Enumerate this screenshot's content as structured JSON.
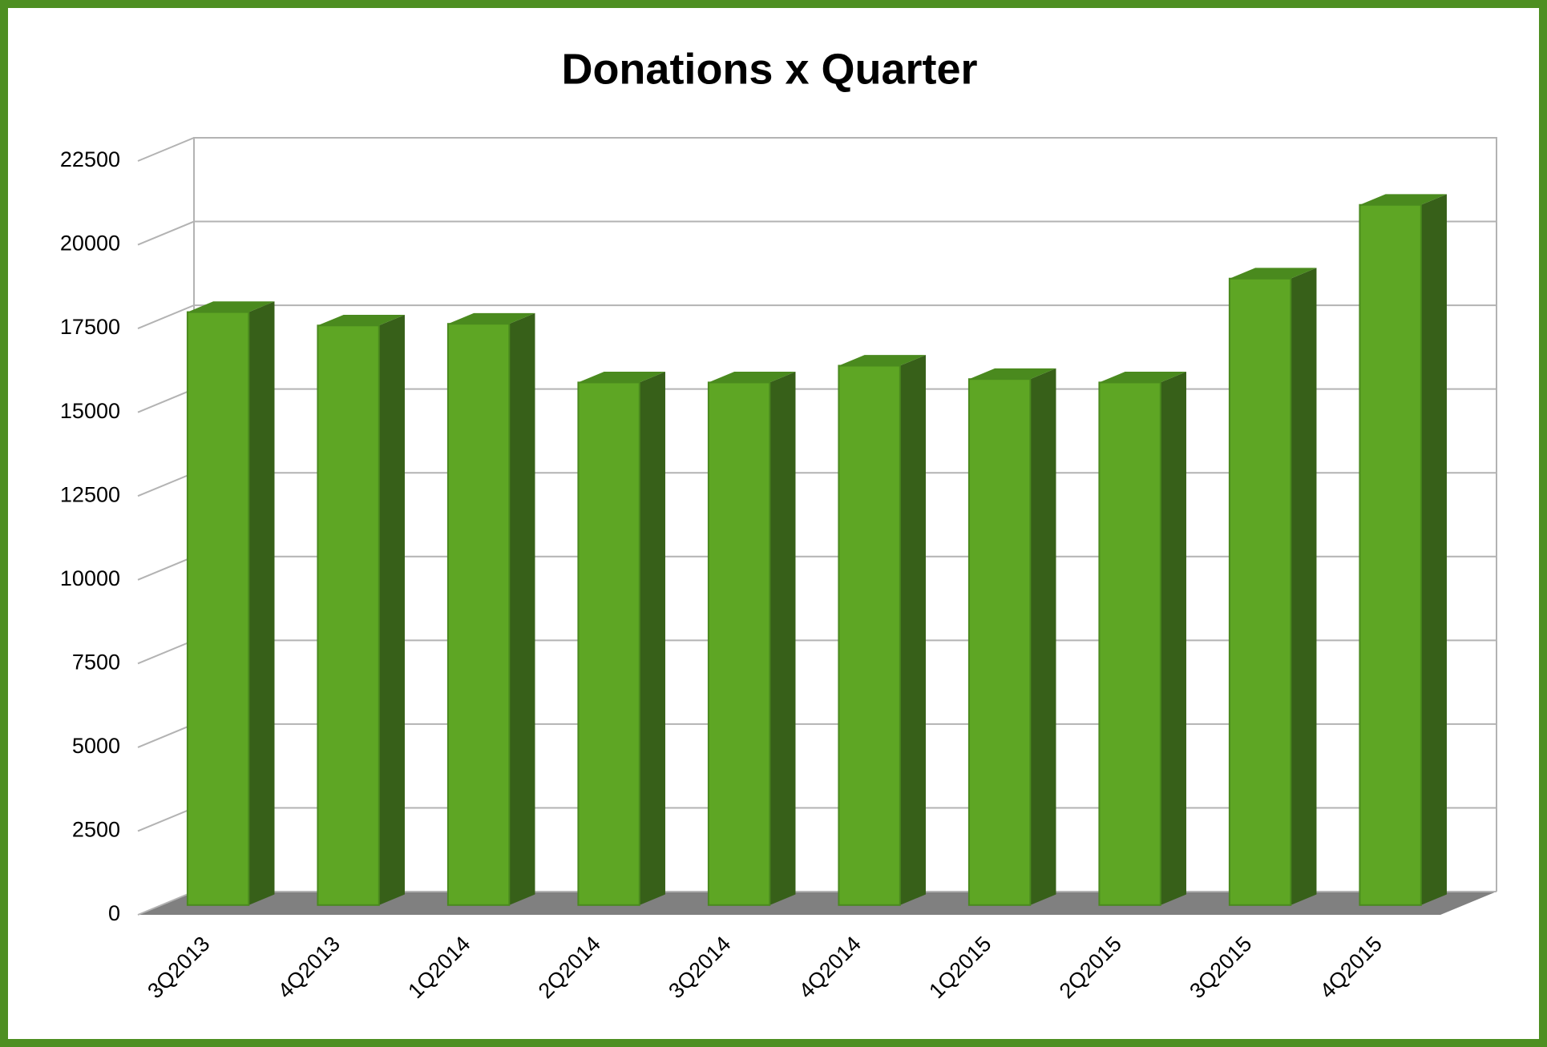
{
  "chart_data": {
    "type": "bar",
    "title": "Donations x Quarter",
    "categories": [
      "3Q2013",
      "4Q2013",
      "1Q2014",
      "2Q2014",
      "3Q2014",
      "4Q2014",
      "1Q2015",
      "2Q2015",
      "3Q2015",
      "4Q2015"
    ],
    "values": [
      17700,
      17300,
      17350,
      15600,
      15600,
      16100,
      15700,
      15600,
      18700,
      20900
    ],
    "color": "#5ea624",
    "ylim": [
      0,
      22500
    ],
    "yticks": [
      0,
      2500,
      5000,
      7500,
      10000,
      12500,
      15000,
      17500,
      20000,
      22500
    ],
    "grid": true
  }
}
